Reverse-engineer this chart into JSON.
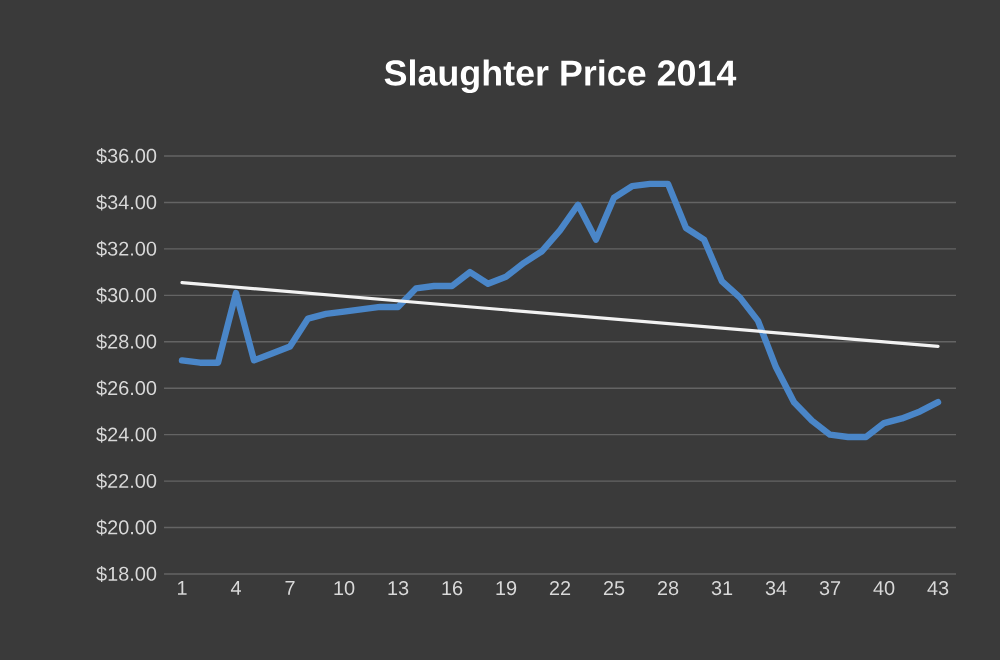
{
  "chart_data": {
    "type": "line",
    "title": "Slaughter Price 2014",
    "x": [
      1,
      2,
      3,
      4,
      5,
      6,
      7,
      8,
      9,
      10,
      11,
      12,
      13,
      14,
      15,
      16,
      17,
      18,
      19,
      20,
      21,
      22,
      23,
      24,
      25,
      26,
      27,
      28,
      29,
      30,
      31,
      32,
      33,
      34,
      35,
      36,
      37,
      38,
      39,
      40,
      41,
      42,
      43
    ],
    "series": [
      {
        "color": "#4a86c8",
        "values": [
          27.2,
          27.1,
          27.1,
          30.1,
          27.2,
          27.5,
          27.8,
          29.0,
          29.2,
          29.3,
          29.4,
          29.5,
          29.5,
          30.3,
          30.4,
          30.4,
          31.0,
          30.5,
          30.8,
          31.4,
          31.9,
          32.8,
          33.9,
          32.4,
          34.2,
          34.7,
          34.8,
          34.8,
          32.9,
          32.4,
          30.6,
          29.9,
          28.9,
          26.9,
          25.4,
          24.6,
          24.0,
          23.9,
          23.9,
          24.5,
          24.7,
          25.0,
          25.4
        ]
      },
      {
        "type": "line",
        "color": "#f2f2f2",
        "x": [
          1,
          43
        ],
        "values": [
          30.55,
          27.8
        ]
      }
    ],
    "xlim": [
      0,
      44
    ],
    "xticks": [
      1,
      4,
      7,
      10,
      13,
      16,
      19,
      22,
      25,
      28,
      31,
      34,
      37,
      40,
      43
    ],
    "ylim": [
      18,
      36
    ],
    "yticks": [
      {
        "value": 18,
        "label": "$18.00"
      },
      {
        "value": 20,
        "label": "$20.00"
      },
      {
        "value": 22,
        "label": "$22.00"
      },
      {
        "value": 24,
        "label": "$24.00"
      },
      {
        "value": 26,
        "label": "$26.00"
      },
      {
        "value": 28,
        "label": "$28.00"
      },
      {
        "value": 30,
        "label": "$30.00"
      },
      {
        "value": 32,
        "label": "$32.00"
      },
      {
        "value": 34,
        "label": "$34.00"
      },
      {
        "value": 36,
        "label": "$36.00"
      }
    ],
    "grid": "y",
    "marker": "none"
  }
}
